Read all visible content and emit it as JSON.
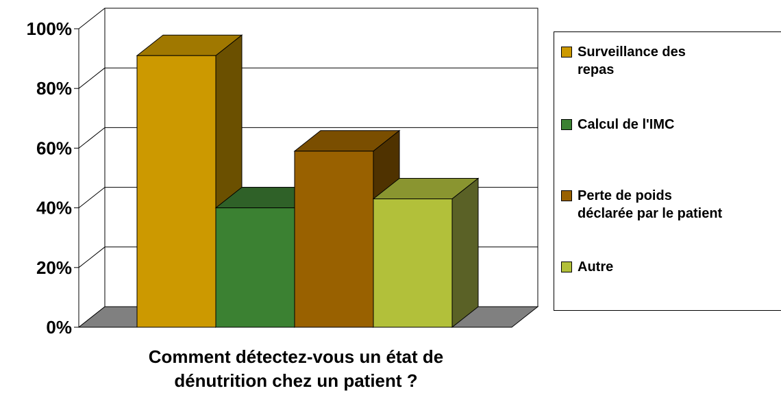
{
  "chart_data": {
    "type": "bar",
    "style": "3d-clustered",
    "categories": [
      "Surveillance des repas",
      "Calcul de l'IMC",
      "Perte de poids déclarée par le patient",
      "Autre"
    ],
    "values": [
      91,
      40,
      59,
      43
    ],
    "unit": "%",
    "ylim": [
      0,
      100
    ],
    "ytick_labels": [
      "0%",
      "20%",
      "40%",
      "60%",
      "80%",
      "100%"
    ],
    "xlabel_lines": [
      "Comment détectez-vous un état de",
      "dénutrition chez un patient ?"
    ],
    "ylabel": "",
    "grid": true,
    "legend_position": "right",
    "legend": [
      {
        "lines": [
          "Surveillance des",
          "repas"
        ],
        "color": "#CC9900"
      },
      {
        "lines": [
          "Calcul de l'IMC"
        ],
        "color": "#3B8132"
      },
      {
        "lines": [
          "Perte de poids",
          "déclarée par le patient"
        ],
        "color": "#996100"
      },
      {
        "lines": [
          "Autre"
        ],
        "color": "#B2C03A"
      }
    ],
    "colors": {
      "front": [
        "#CC9900",
        "#3B8132",
        "#996100",
        "#B2C03A"
      ],
      "top": [
        "#A07800",
        "#2F6128",
        "#7A4E00",
        "#8A9530"
      ],
      "side": [
        "#6B5000",
        "#1F3F1A",
        "#4F3200",
        "#5A6126"
      ],
      "floor": "#808080"
    }
  }
}
